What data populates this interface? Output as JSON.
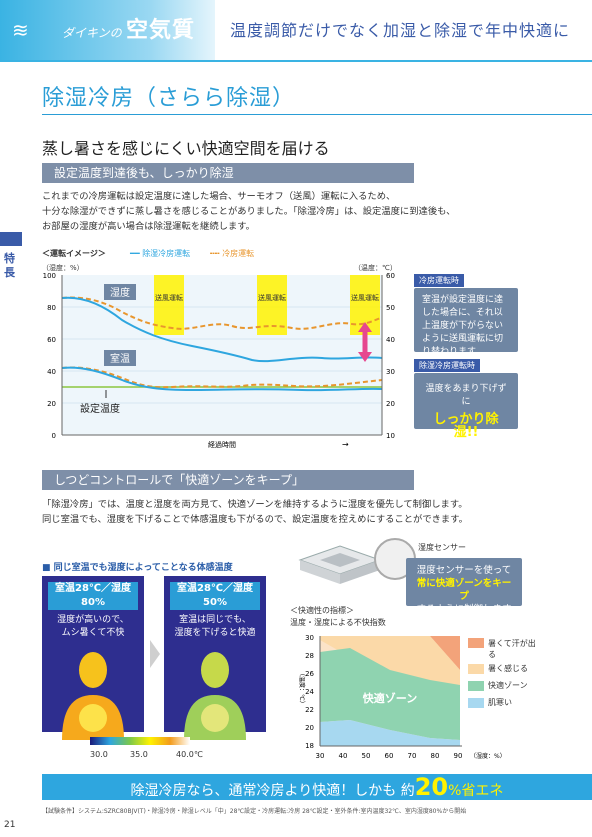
{
  "header": {
    "brand_small": "ダイキンの",
    "brand_big": "空気質",
    "tagline": "温度調節だけでなく加湿と除湿で年中快適に"
  },
  "page_title": "除湿冷房（さらら除湿）",
  "side_tab": "特長",
  "section1": {
    "heading": "蒸し暑さを感じにくい快適空間を届ける",
    "bar": "設定温度到達後も、しっかり除湿",
    "lines": [
      "これまでの冷房運転は設定温度に達した場合、サーモオフ（送風）運転に入るため、",
      "十分な除湿ができずに蒸し暑さを感じることがありました。「除湿冷房」は、設定温度に到達後も、",
      "お部屋の湿度が高い場合は除湿運転を継続します。"
    ]
  },
  "chart_data": {
    "type": "line",
    "title": "＜運転イメージ＞",
    "xlabel": "経過時間",
    "ylabel_left": "（湿度：%）",
    "ylabel_right": "（温度：℃）",
    "left_ticks": [
      "100",
      "80",
      "60",
      "40",
      "20",
      "0"
    ],
    "right_ticks": [
      "60",
      "50",
      "40",
      "30",
      "20",
      "10"
    ],
    "ylim_left": [
      0,
      100
    ],
    "ylim_right": [
      10,
      60
    ],
    "series": [
      {
        "name": "除湿冷房運転",
        "color": "#2ea6df",
        "style": "solid"
      },
      {
        "name": "冷房運転",
        "color": "#e8962e",
        "style": "dashed"
      }
    ],
    "labels": {
      "humidity": "湿度",
      "room_temp": "室温",
      "set_temp": "設定温度",
      "fan": "送風運転"
    },
    "callout_top_tag": "冷房運転時",
    "callout_top_text": "室温が設定温度に達した場合に、それ以上温度が下がらないように送風運転に切り替わります。",
    "callout_bottom_tag": "除湿冷房運転時",
    "callout_bottom_text1": "温度をあまり下げずに",
    "callout_bottom_text2": "しっかり除湿!!"
  },
  "section2": {
    "bar": "しつどコントロールで「快適ゾーンをキープ」",
    "lines": [
      "「除湿冷房」では、温度と湿度を両方見て、快適ゾーンを維持するように湿度を優先して制御します。",
      "同じ室温でも、湿度を下げることで体感温度も下がるので、設定温度を控えめにすることができます。"
    ],
    "thermo_title": "■ 同じ室温でも湿度によってことなる体感温度",
    "thermo_left_label": "室温28℃／湿度80%",
    "thermo_left_cap1": "湿度が高いので、",
    "thermo_left_cap2": "ムシ暑くて不快",
    "thermo_right_label": "室温28℃／湿度50%",
    "thermo_right_cap1": "室温は同じでも、",
    "thermo_right_cap2": "湿度を下げると快適",
    "scale": [
      "30.0",
      "35.0",
      "40.0℃"
    ],
    "sensor_label": "湿度センサー",
    "sensor_callout1": "湿度センサーを使って",
    "sensor_callout2": "常に快適ゾーンをキープ",
    "sensor_callout3": "するように制御します",
    "comfort_title": "＜快適性の指標＞",
    "comfort_sub": "温度・湿度による不快指数",
    "comfort_y": [
      "30",
      "28",
      "26",
      "24",
      "22",
      "20",
      "18"
    ],
    "comfort_x": [
      "30",
      "40",
      "50",
      "60",
      "70",
      "80",
      "90"
    ],
    "comfort_y_unit": "（温度：℃）",
    "comfort_x_unit": "（湿度：%）",
    "zone": "快適ゾーン",
    "legend": [
      "暑くて汗が出る",
      "暑く感じる",
      "快適ゾーン",
      "肌寒い"
    ]
  },
  "banner": {
    "pre": "除湿冷房なら、通常冷房より快適！しかも 約",
    "num": "20",
    "post": "%省エネ"
  },
  "footnote": "【試験条件】システム:SZRC80BJV(T)・除湿冷房・除湿レベル「中」28℃設定・冷房運転:冷房 28℃設定・室外条件:室内温度32℃、室内湿度80%から開始",
  "page_number": "21"
}
